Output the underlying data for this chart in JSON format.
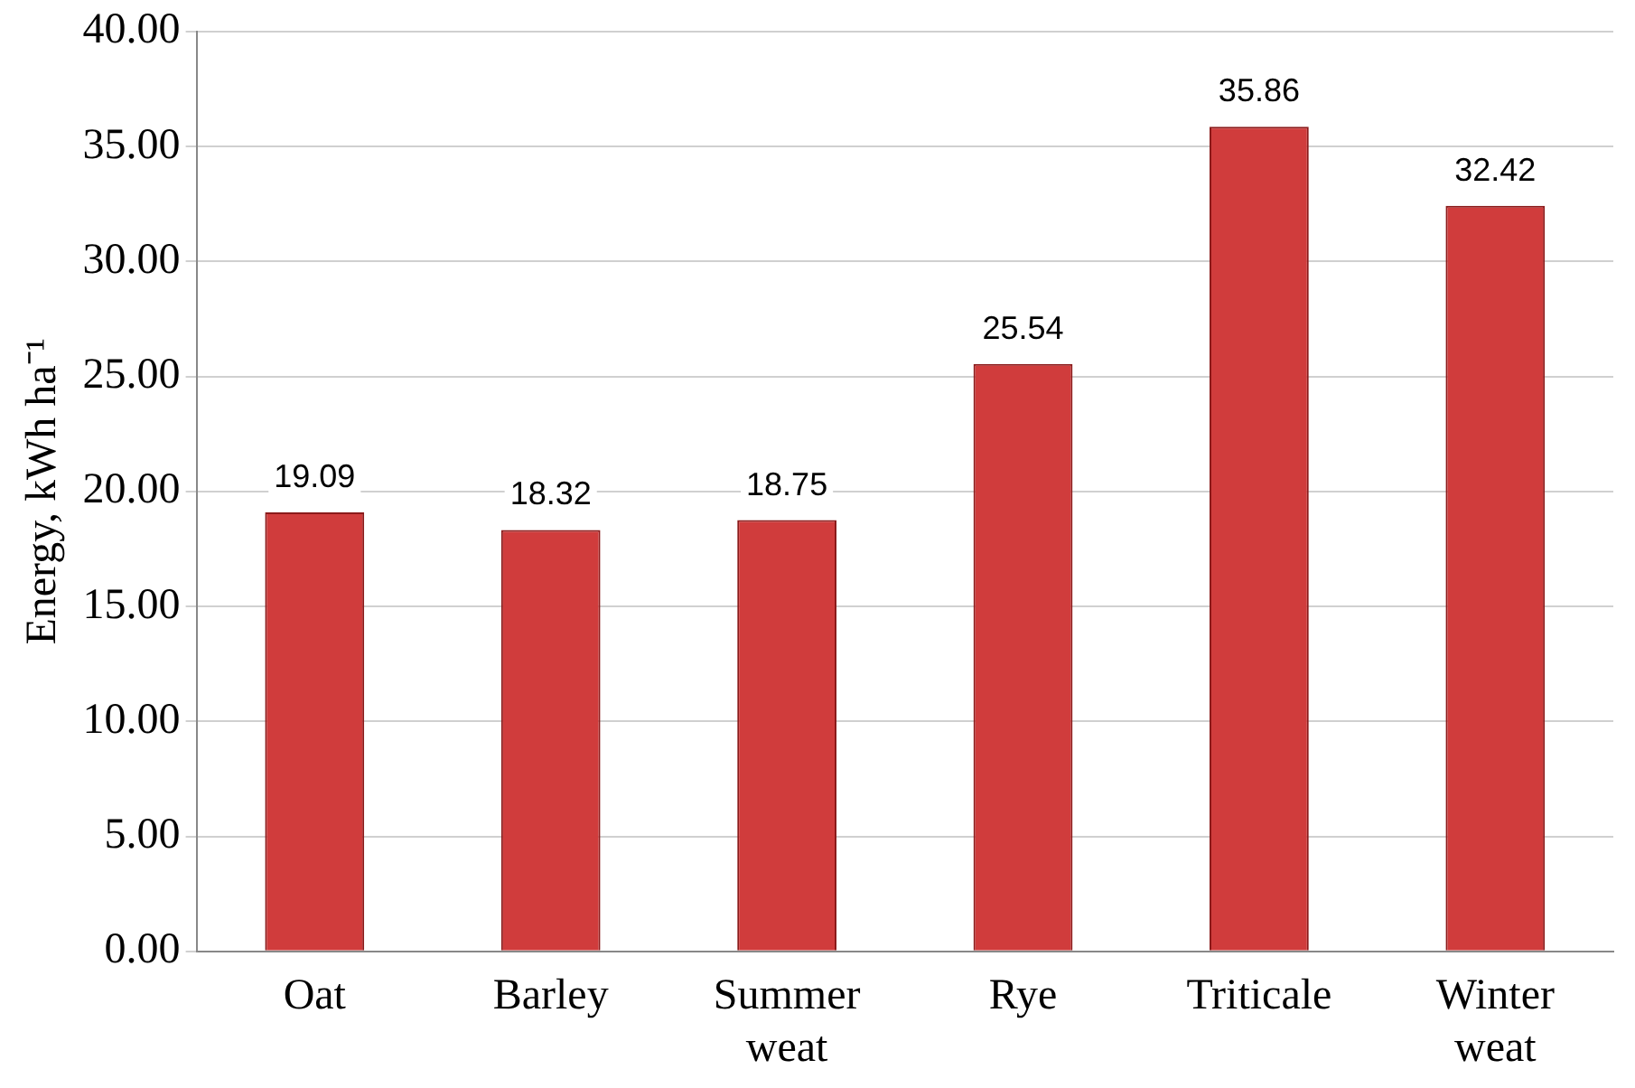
{
  "chart_data": {
    "type": "bar",
    "ylabel": "Energy, kWh ha⁻¹",
    "categories": [
      "Oat",
      "Barley",
      "Summer weat",
      "Rye",
      "Triticale",
      "Winter weat"
    ],
    "values": [
      19.09,
      18.32,
      18.75,
      25.54,
      35.86,
      32.42
    ],
    "color": "#d03c3c",
    "ylim": [
      0,
      40
    ],
    "yticks": [
      {
        "value": 0,
        "label": "0.00"
      },
      {
        "value": 5,
        "label": "5.00"
      },
      {
        "value": 10,
        "label": "10.00"
      },
      {
        "value": 15,
        "label": "15.00"
      },
      {
        "value": 20,
        "label": "20.00"
      },
      {
        "value": 25,
        "label": "25.00"
      },
      {
        "value": 30,
        "label": "30.00"
      },
      {
        "value": 35,
        "label": "35.00"
      },
      {
        "value": 40,
        "label": "40.00"
      }
    ],
    "grid": "y",
    "data_labels": true,
    "legend": false
  }
}
